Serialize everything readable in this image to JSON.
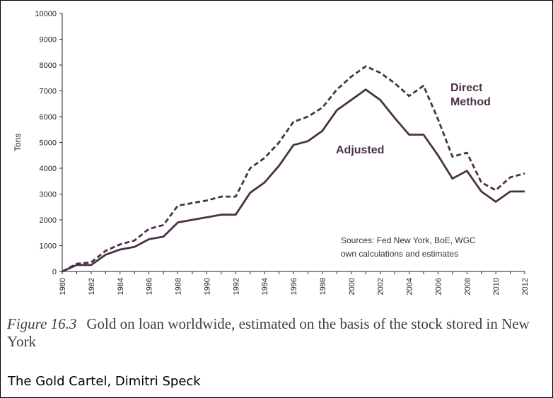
{
  "chart_data": {
    "type": "line",
    "ylabel": "Tons",
    "ylim": [
      0,
      10000
    ],
    "yticks": [
      0,
      1000,
      2000,
      3000,
      4000,
      5000,
      6000,
      7000,
      8000,
      9000,
      10000
    ],
    "xlim": [
      1980,
      2012
    ],
    "xticks": [
      1980,
      1982,
      1984,
      1986,
      1988,
      1990,
      1992,
      1994,
      1996,
      1998,
      2000,
      2002,
      2004,
      2006,
      2008,
      2010,
      2012
    ],
    "x": [
      1980,
      1981,
      1982,
      1983,
      1984,
      1985,
      1986,
      1987,
      1988,
      1989,
      1990,
      1991,
      1992,
      1993,
      1994,
      1995,
      1996,
      1997,
      1998,
      1999,
      2000,
      2001,
      2002,
      2003,
      2004,
      2005,
      2006,
      2007,
      2008,
      2009,
      2010,
      2011,
      2012
    ],
    "series": [
      {
        "name": "Direct Method",
        "values": [
          0,
          300,
          350,
          800,
          1050,
          1200,
          1650,
          1800,
          2550,
          2650,
          2750,
          2900,
          2900,
          4000,
          4400,
          5000,
          5800,
          6000,
          6350,
          7050,
          7550,
          7950,
          7700,
          7300,
          6800,
          7200,
          5900,
          4450,
          4600,
          3450,
          3150,
          3650,
          3800
        ]
      },
      {
        "name": "Adjusted",
        "values": [
          0,
          250,
          250,
          650,
          850,
          950,
          1250,
          1350,
          1900,
          2000,
          2100,
          2200,
          2200,
          3050,
          3450,
          4100,
          4900,
          5050,
          5450,
          6250,
          6650,
          7050,
          6650,
          5950,
          5300,
          5300,
          4500,
          3600,
          3900,
          3100,
          2700,
          3100,
          3100
        ]
      }
    ],
    "annotation": {
      "line1": "Sources: Fed New York, BoE, WGC",
      "line2": "own calculations and estimates"
    }
  },
  "labels": {
    "direct_line1": "Direct",
    "direct_line2": "Method",
    "adjusted": "Adjusted"
  },
  "caption": {
    "figure_number": "Figure 16.3",
    "text": "Gold on loan worldwide, estimated on the basis of the stock stored in New York"
  },
  "credit": "The Gold Cartel, Dimitri Speck",
  "colors": {
    "line": "#4a3148",
    "axis": "#222222"
  }
}
